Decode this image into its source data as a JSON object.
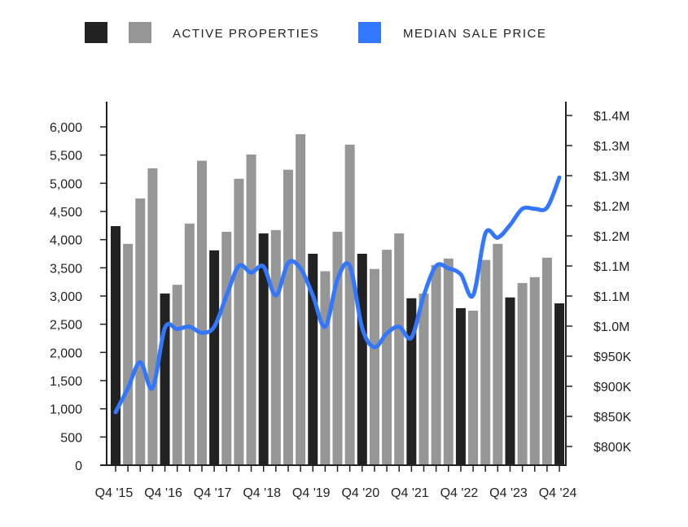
{
  "chart_data": {
    "type": "bar",
    "title": "",
    "legend": {
      "placement": "top",
      "items": [
        {
          "label": "",
          "color": "#222222"
        },
        {
          "label": "ACTIVE PROPERTIES",
          "color": "#969696"
        },
        {
          "label": "MEDIAN SALE PRICE",
          "color": "#3377ff"
        }
      ]
    },
    "colors": {
      "q4_bar": "#222222",
      "other_bar": "#969696",
      "line": "#3377ff",
      "axis": "#222222"
    },
    "x_tick_labels": [
      "Q4 '15",
      "Q4 '16",
      "Q4 '17",
      "Q4 '18",
      "Q4 '19",
      "Q4 '20",
      "Q4 '21",
      "Q4 '22",
      "Q4 '23",
      "Q4 '24"
    ],
    "left_axis": {
      "ylim": [
        0,
        6000
      ],
      "ticks": [
        0,
        500,
        1000,
        1500,
        2000,
        2500,
        3000,
        3500,
        4000,
        4500,
        5000,
        5500,
        6000
      ],
      "tick_labels": [
        "0",
        "500",
        "1,000",
        "1,500",
        "2,000",
        "2,500",
        "3,000",
        "3,500",
        "4,000",
        "4,500",
        "5,000",
        "5,500",
        "6,000"
      ]
    },
    "right_axis": {
      "ylim": [
        769000,
        1380000
      ],
      "ticks": [
        800000,
        850000,
        900000,
        950000,
        1000000,
        1050000,
        1100000,
        1150000,
        1200000,
        1250000,
        1300000,
        1350000
      ],
      "tick_labels": [
        "$800K",
        "$850K",
        "$900K",
        "$950K",
        "$1.0M",
        "$1.1M",
        "$1.1M",
        "$1.2M",
        "$1.2M",
        "$1.3M",
        "$1.3M",
        "$1.4M"
      ]
    },
    "categories": [
      "Q4 2015",
      "Q1 2016",
      "Q2 2016",
      "Q3 2016",
      "Q4 2016",
      "Q1 2017",
      "Q2 2017",
      "Q3 2017",
      "Q4 2017",
      "Q1 2018",
      "Q2 2018",
      "Q3 2018",
      "Q4 2018",
      "Q1 2019",
      "Q2 2019",
      "Q3 2019",
      "Q4 2019",
      "Q1 2020",
      "Q2 2020",
      "Q3 2020",
      "Q4 2020",
      "Q1 2021",
      "Q2 2021",
      "Q3 2021",
      "Q4 2021",
      "Q1 2022",
      "Q2 2022",
      "Q3 2022",
      "Q4 2022",
      "Q1 2023",
      "Q2 2023",
      "Q3 2023",
      "Q4 2023",
      "Q1 2024",
      "Q2 2024",
      "Q3 2024",
      "Q4 2024"
    ],
    "series": [
      {
        "name": "Active Properties",
        "type": "bar",
        "values": [
          4240,
          3925,
          4730,
          5265,
          3045,
          3200,
          4285,
          5400,
          3810,
          4140,
          5080,
          5510,
          4110,
          4170,
          5240,
          5870,
          3750,
          3440,
          4140,
          5685,
          3750,
          3480,
          3820,
          4110,
          2960,
          3045,
          3550,
          3665,
          2785,
          2740,
          3640,
          3925,
          2975,
          3230,
          3335,
          3680,
          2870
        ]
      },
      {
        "name": "Median Sale Price",
        "type": "line",
        "values": [
          857000,
          897000,
          940000,
          897000,
          997000,
          995000,
          999000,
          989000,
          999000,
          1051000,
          1100000,
          1089000,
          1099000,
          1051000,
          1105000,
          1096000,
          1051000,
          999000,
          1078000,
          1100000,
          997000,
          965000,
          988000,
          999000,
          981000,
          1051000,
          1100000,
          1096000,
          1086000,
          1051000,
          1154000,
          1147000,
          1168000,
          1195000,
          1195000,
          1197000,
          1247000
        ]
      }
    ]
  }
}
